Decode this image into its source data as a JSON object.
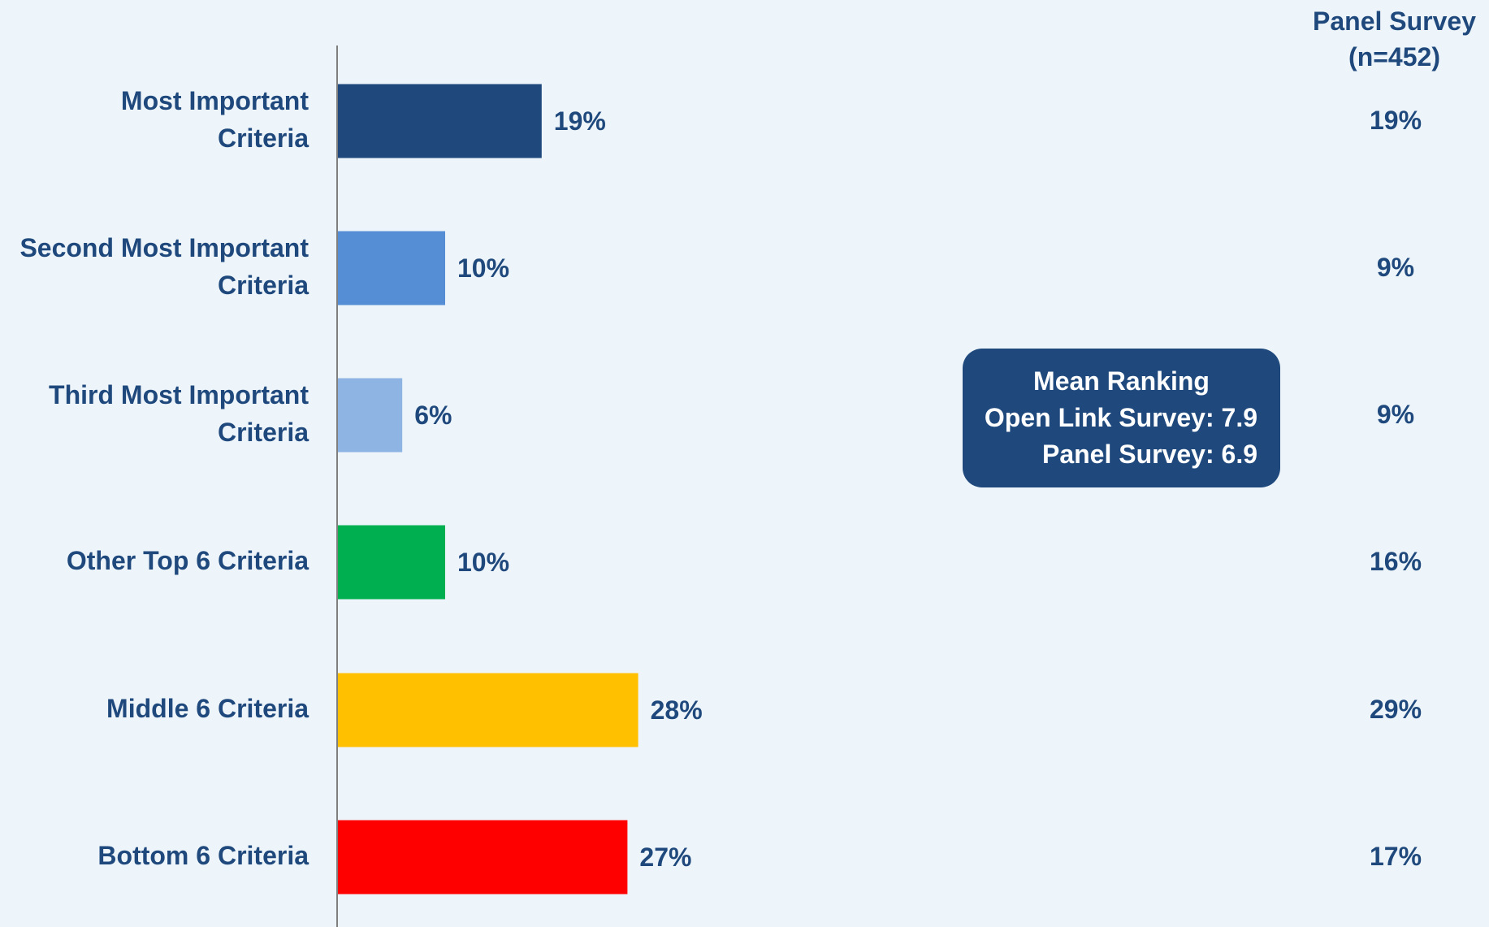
{
  "chart_data": {
    "type": "bar",
    "orientation": "horizontal",
    "categories": [
      [
        "Most Important",
        "Criteria"
      ],
      [
        "Second Most Important",
        "Criteria"
      ],
      [
        "Third Most Important",
        "Criteria"
      ],
      [
        "Other Top 6 Criteria"
      ],
      [
        "Middle 6 Criteria"
      ],
      [
        "Bottom 6 Criteria"
      ]
    ],
    "values": [
      19,
      10,
      6,
      10,
      28,
      27
    ],
    "value_labels": [
      "19%",
      "10%",
      "6%",
      "10%",
      "28%",
      "27%"
    ],
    "bar_colors": [
      "#1f497d",
      "#558ed5",
      "#8eb4e3",
      "#00b050",
      "#ffc000",
      "#ff0000"
    ],
    "xlim": [
      0,
      100
    ],
    "grid": false,
    "panel_column": {
      "header": [
        "Panel Survey",
        "(n=452)"
      ],
      "values": [
        "19%",
        "9%",
        "9%",
        "16%",
        "29%",
        "17%"
      ]
    },
    "annotation": {
      "title": "Mean Ranking",
      "open_link": "Open Link Survey: 7.9",
      "panel": "Panel Survey: 6.9"
    }
  },
  "colors": {
    "text": "#1f497d",
    "background": "#eef5fa",
    "axis": "#7f7f7f",
    "annotation_bg": "#1f497d"
  }
}
